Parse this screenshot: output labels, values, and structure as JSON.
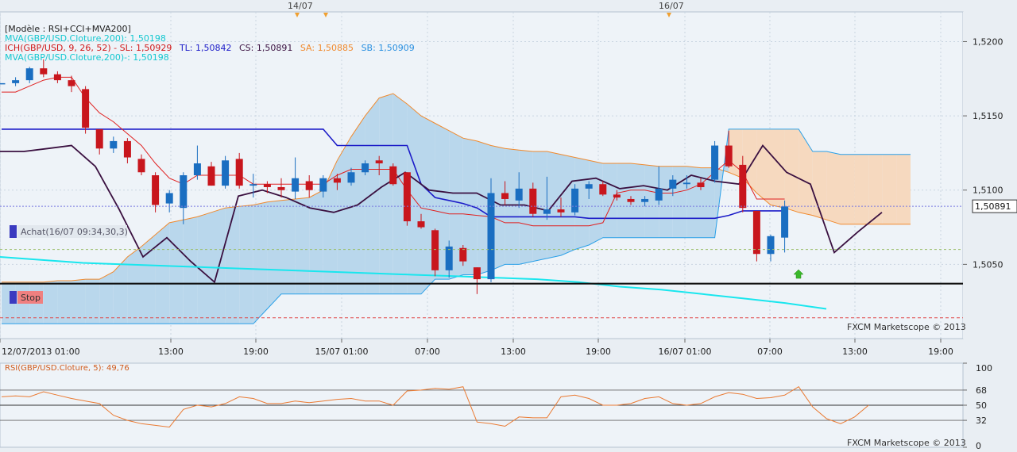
{
  "colors": {
    "bull": "#1a6ec1",
    "bear": "#c8161d",
    "cloud_up": "#b9d7ec",
    "cloud_down": "#f6d9bf",
    "tenkan": "#e02020",
    "kijun": "#1b1bc8",
    "senkou_a": "#f08a2e",
    "senkou_b": "#2aa0e8",
    "mva": "#19e6ee",
    "cci": "#3a1040",
    "rsi": "#ea7a32"
  },
  "header": {
    "model": "[Modèle : RSI+CCI+MVA200]",
    "mva1": "MVA(GBP/USD.Cloture,200): 1,50198",
    "ich_prefix": "ICH(GBP/USD, 9, 26, 52) -  SL: 1,50929",
    "ich_tl": "TL: 1,50842",
    "ich_cs": "CS: 1,50891",
    "ich_sa": "SA: 1,50885",
    "ich_sb": "SB: 1,50909",
    "mva2": "MVA(GBP/USD.Cloture,200)-: 1,50198"
  },
  "markers": [
    "14/07",
    "16/07"
  ],
  "trade_labels": {
    "achat": "Achat(16/07 09:34,30,3)",
    "stop": "Stop"
  },
  "watermark": "FXCM Marketscope © 2013",
  "rsi_title": "RSI(GBP/USD.Cloture, 5): 49,76",
  "chart_data": [
    {
      "type": "candlestick",
      "title": "GBP/USD",
      "y_ticks": [
        "1,5200",
        "1,5150",
        "1,5100",
        "1,5050"
      ],
      "ylim": [
        1.5,
        1.522
      ],
      "x_tick_labels": [
        "12/07/2013 01:00",
        "13:00",
        "19:00",
        "15/07 01:00",
        "07:00",
        "13:00",
        "19:00",
        "16/07 01:00",
        "07:00",
        "13:00",
        "19:00"
      ],
      "last_price": "1,50891",
      "candles": [
        [
          1.5172,
          1.5172,
          1.5172,
          1.5172
        ],
        [
          1.5172,
          1.5176,
          1.517,
          1.5174
        ],
        [
          1.5174,
          1.5183,
          1.5172,
          1.5182
        ],
        [
          1.5182,
          1.5188,
          1.5176,
          1.5178
        ],
        [
          1.5178,
          1.518,
          1.5172,
          1.5174
        ],
        [
          1.5174,
          1.5177,
          1.5166,
          1.517
        ],
        [
          1.5168,
          1.517,
          1.5138,
          1.5142
        ],
        [
          1.5141,
          1.5141,
          1.5124,
          1.5128
        ],
        [
          1.5128,
          1.5136,
          1.5125,
          1.5133
        ],
        [
          1.5133,
          1.5135,
          1.5118,
          1.5122
        ],
        [
          1.5121,
          1.5124,
          1.511,
          1.5112
        ],
        [
          1.511,
          1.5112,
          1.5085,
          1.509
        ],
        [
          1.5091,
          1.51,
          1.5085,
          1.5098
        ],
        [
          1.5088,
          1.5112,
          1.5077,
          1.511
        ],
        [
          1.511,
          1.513,
          1.5107,
          1.5118
        ],
        [
          1.5116,
          1.5119,
          1.5103,
          1.5103
        ],
        [
          1.5103,
          1.5123,
          1.5101,
          1.512
        ],
        [
          1.5121,
          1.5125,
          1.5101,
          1.5103
        ],
        [
          1.5103,
          1.5111,
          1.5095,
          1.5104
        ],
        [
          1.5104,
          1.5106,
          1.5098,
          1.5102
        ],
        [
          1.5102,
          1.5108,
          1.5095,
          1.51
        ],
        [
          1.5099,
          1.5122,
          1.5094,
          1.5108
        ],
        [
          1.5106,
          1.511,
          1.5095,
          1.51
        ],
        [
          1.5099,
          1.511,
          1.5095,
          1.5108
        ],
        [
          1.5108,
          1.5111,
          1.51,
          1.5105
        ],
        [
          1.5105,
          1.5115,
          1.5103,
          1.5112
        ],
        [
          1.5112,
          1.512,
          1.511,
          1.5118
        ],
        [
          1.512,
          1.5123,
          1.511,
          1.5118
        ],
        [
          1.5116,
          1.5118,
          1.5103,
          1.5104
        ],
        [
          1.5112,
          1.5112,
          1.5076,
          1.5079
        ],
        [
          1.5079,
          1.5084,
          1.5074,
          1.5075
        ],
        [
          1.5073,
          1.5074,
          1.5042,
          1.5046
        ],
        [
          1.5046,
          1.5066,
          1.5041,
          1.5062
        ],
        [
          1.5061,
          1.5063,
          1.5049,
          1.5052
        ],
        [
          1.5048,
          1.5048,
          1.503,
          1.504
        ],
        [
          1.504,
          1.5108,
          1.5038,
          1.5098
        ],
        [
          1.5098,
          1.5106,
          1.509,
          1.5094
        ],
        [
          1.5093,
          1.5112,
          1.5088,
          1.5101
        ],
        [
          1.5101,
          1.5105,
          1.5082,
          1.5084
        ],
        [
          1.5084,
          1.5109,
          1.508,
          1.5087
        ],
        [
          1.5087,
          1.5095,
          1.5082,
          1.5085
        ],
        [
          1.5085,
          1.5104,
          1.5083,
          1.5101
        ],
        [
          1.5101,
          1.5106,
          1.5094,
          1.5104
        ],
        [
          1.5104,
          1.5106,
          1.5096,
          1.5097
        ],
        [
          1.5097,
          1.51,
          1.5093,
          1.5095
        ],
        [
          1.5094,
          1.5096,
          1.509,
          1.5092
        ],
        [
          1.5092,
          1.5096,
          1.5089,
          1.5094
        ],
        [
          1.5093,
          1.5116,
          1.509,
          1.5101
        ],
        [
          1.5101,
          1.511,
          1.5096,
          1.5107
        ],
        [
          1.5104,
          1.511,
          1.5101,
          1.5105
        ],
        [
          1.5105,
          1.5108,
          1.51,
          1.5102
        ],
        [
          1.5107,
          1.5133,
          1.5105,
          1.513
        ],
        [
          1.513,
          1.514,
          1.5115,
          1.5116
        ],
        [
          1.5117,
          1.5123,
          1.5085,
          1.5088
        ],
        [
          1.5086,
          1.5086,
          1.5052,
          1.5057
        ],
        [
          1.5057,
          1.507,
          1.5052,
          1.5069
        ],
        [
          1.5068,
          1.5093,
          1.5058,
          1.5089
        ]
      ],
      "series": [
        {
          "name": "TL",
          "values": [
            1.5166,
            1.5166,
            1.517,
            1.5174,
            1.5176,
            1.5176,
            1.5162,
            1.5152,
            1.5146,
            1.5138,
            1.513,
            1.5118,
            1.5108,
            1.5104,
            1.511,
            1.511,
            1.511,
            1.511,
            1.5104,
            1.5104,
            1.5104,
            1.5104,
            1.5104,
            1.5104,
            1.511,
            1.5114,
            1.5114,
            1.5114,
            1.5114,
            1.51,
            1.5088,
            1.5086,
            1.5084,
            1.5084,
            1.5083,
            1.5082,
            1.5078,
            1.5078,
            1.5076,
            1.5076,
            1.5076,
            1.5076,
            1.5076,
            1.5078,
            1.5098,
            1.51,
            1.51,
            1.5098,
            1.5098,
            1.51,
            1.5104,
            1.5112,
            1.512,
            1.5112,
            1.5094,
            1.5094,
            1.5094
          ]
        },
        {
          "name": "SL",
          "values": [
            1.5141,
            1.5141,
            1.5141,
            1.5141,
            1.5141,
            1.5141,
            1.5141,
            1.5141,
            1.5141,
            1.5141,
            1.5141,
            1.5141,
            1.5141,
            1.5141,
            1.5141,
            1.5141,
            1.5141,
            1.5141,
            1.5141,
            1.5141,
            1.5141,
            1.5141,
            1.5141,
            1.5141,
            1.513,
            1.513,
            1.513,
            1.513,
            1.513,
            1.513,
            1.5104,
            1.5095,
            1.5093,
            1.5091,
            1.5088,
            1.5082,
            1.5082,
            1.5082,
            1.5082,
            1.5082,
            1.5082,
            1.5082,
            1.5081,
            1.5081,
            1.5081,
            1.5081,
            1.5081,
            1.5081,
            1.5081,
            1.5081,
            1.5081,
            1.5081,
            1.5083,
            1.5086,
            1.5086,
            1.5086,
            1.5086
          ]
        },
        {
          "name": "SA",
          "values": [
            1.5038,
            1.5038,
            1.5038,
            1.5038,
            1.5039,
            1.5039,
            1.504,
            1.504,
            1.5045,
            1.5055,
            1.5062,
            1.507,
            1.5078,
            1.508,
            1.5082,
            1.5085,
            1.5088,
            1.5089,
            1.509,
            1.5092,
            1.5093,
            1.5094,
            1.5095,
            1.51,
            1.512,
            1.5136,
            1.515,
            1.5162,
            1.5165,
            1.5158,
            1.515,
            1.5145,
            1.514,
            1.5135,
            1.5133,
            1.513,
            1.5128,
            1.5127,
            1.5126,
            1.5126,
            1.5124,
            1.5122,
            1.512,
            1.5118,
            1.5118,
            1.5118,
            1.5117,
            1.5116,
            1.5116,
            1.5116,
            1.5115,
            1.5115,
            1.5112,
            1.5108,
            1.5098,
            1.509,
            1.5088,
            1.5085,
            1.5083,
            1.508,
            1.5077,
            1.5077,
            1.5077,
            1.5077,
            1.5077,
            1.5077
          ]
        },
        {
          "name": "SB",
          "values": [
            1.501,
            1.501,
            1.501,
            1.501,
            1.501,
            1.501,
            1.501,
            1.501,
            1.501,
            1.501,
            1.501,
            1.501,
            1.501,
            1.501,
            1.501,
            1.501,
            1.501,
            1.501,
            1.501,
            1.502,
            1.503,
            1.503,
            1.503,
            1.503,
            1.503,
            1.503,
            1.503,
            1.503,
            1.503,
            1.503,
            1.503,
            1.504,
            1.504,
            1.5043,
            1.5043,
            1.5046,
            1.505,
            1.505,
            1.5052,
            1.5054,
            1.5056,
            1.506,
            1.5063,
            1.5068,
            1.5068,
            1.5068,
            1.5068,
            1.5068,
            1.5068,
            1.5068,
            1.5068,
            1.5068,
            1.5141,
            1.5141,
            1.5141,
            1.5141,
            1.5141,
            1.5141,
            1.5126,
            1.5126,
            1.5124,
            1.5124,
            1.5124,
            1.5124,
            1.5124,
            1.5124
          ]
        },
        {
          "name": "CCI",
          "values": [
            1.5126,
            1.5126,
            1.5128,
            1.513,
            1.5116,
            1.5087,
            1.5055,
            1.5068,
            1.5052,
            1.5038,
            1.5096,
            1.51,
            1.5095,
            1.5088,
            1.5085,
            1.509,
            1.5102,
            1.5112,
            1.51,
            1.5098,
            1.5098,
            1.509,
            1.509,
            1.5086,
            1.5106,
            1.5108,
            1.5101,
            1.5103,
            1.51,
            1.511,
            1.5106,
            1.5104,
            1.513,
            1.5112,
            1.5104,
            1.5058,
            1.5072,
            1.5085
          ]
        },
        {
          "name": "MVA",
          "values": [
            1.5055,
            1.5053,
            1.5051,
            1.505,
            1.5049,
            1.5048,
            1.5047,
            1.5046,
            1.5045,
            1.5044,
            1.5043,
            1.5042,
            1.5041,
            1.504,
            1.5038,
            1.5035,
            1.5033,
            1.503,
            1.5027,
            1.5024,
            1.502
          ]
        }
      ],
      "levels": {
        "achat": 1.506,
        "support": 1.5037,
        "stop": 1.5014,
        "last": 1.50891
      }
    },
    {
      "type": "line",
      "title": "RSI(GBP/USD.Cloture, 5): 49,76",
      "y_ticks": [
        "100",
        "68",
        "50",
        "32",
        "0"
      ],
      "ylim": [
        0,
        100
      ],
      "series": [
        {
          "name": "RSI",
          "values": [
            60,
            61,
            60,
            66,
            62,
            58,
            55,
            52,
            38,
            32,
            28,
            26,
            24,
            45,
            50,
            48,
            52,
            60,
            58,
            52,
            52,
            55,
            53,
            55,
            57,
            58,
            55,
            55,
            50,
            67,
            68,
            70,
            69,
            72,
            30,
            28,
            25,
            36,
            35,
            35,
            60,
            62,
            58,
            50,
            50,
            52,
            58,
            60,
            52,
            50,
            52,
            60,
            65,
            63,
            58,
            59,
            62,
            72,
            48,
            34,
            28,
            36,
            50
          ]
        }
      ],
      "levels": [
        68,
        50,
        32
      ]
    }
  ]
}
